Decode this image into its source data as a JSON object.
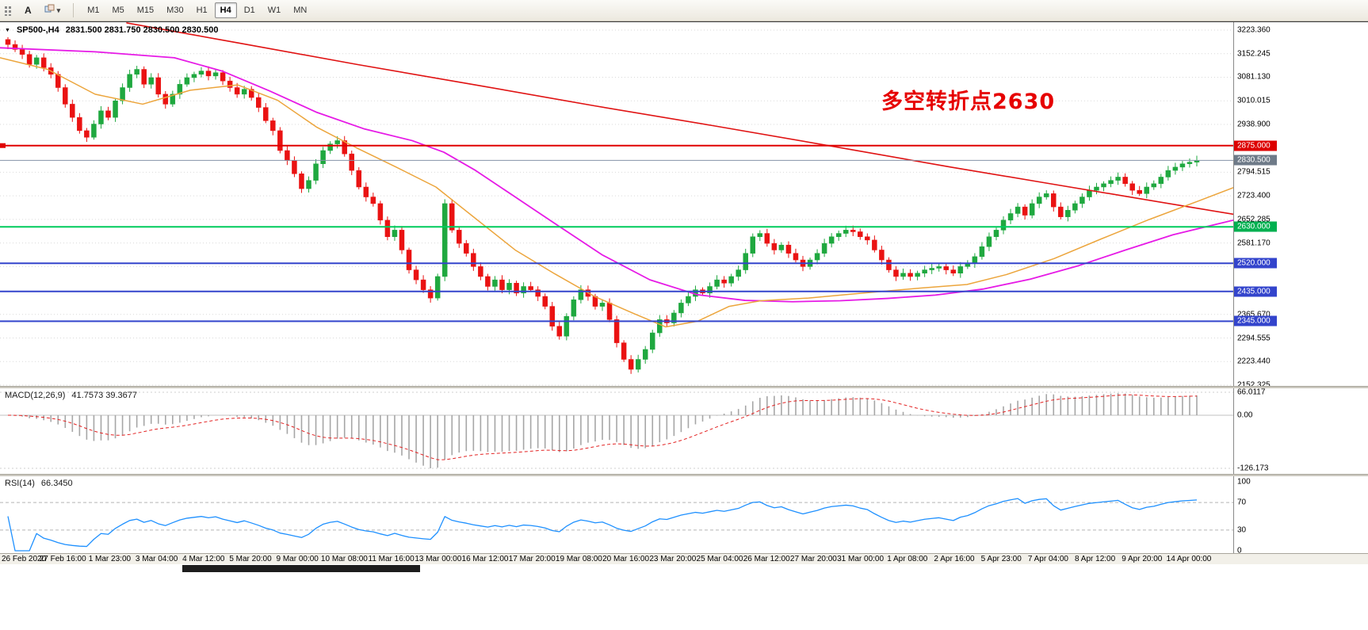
{
  "toolbar": {
    "a_button": "A",
    "timeframes": [
      "M1",
      "M5",
      "M15",
      "M30",
      "H1",
      "H4",
      "D1",
      "W1",
      "MN"
    ],
    "active_timeframe": "H4"
  },
  "header": {
    "symbol": "SP500-,H4",
    "ohlc": "2831.500 2831.750 2830.500 2830.500"
  },
  "annotation": {
    "text": "多空转折点2630",
    "color": "#e60000"
  },
  "macd_panel": {
    "label_name": "MACD(12,26,9)",
    "label_values": "41.7573 39.3677"
  },
  "rsi_panel": {
    "label_name": "RSI(14)",
    "label_value": "66.3450"
  },
  "chart_data": {
    "type": "candlestick",
    "symbol": "SP500-",
    "timeframe": "H4",
    "current_ohlc": {
      "open": 2831.5,
      "high": 2831.75,
      "low": 2830.5,
      "close": 2830.5
    },
    "y_axis": {
      "range": [
        2152.325,
        3223.36
      ],
      "tick_labels": [
        {
          "text": "3223.360",
          "price": 3223.36
        },
        {
          "text": "3152.245",
          "price": 3152.245
        },
        {
          "text": "3081.130",
          "price": 3081.13
        },
        {
          "text": "3010.015",
          "price": 3010.015
        },
        {
          "text": "2938.900",
          "price": 2938.9
        },
        {
          "text": "2794.515",
          "price": 2794.515
        },
        {
          "text": "2723.400",
          "price": 2723.4
        },
        {
          "text": "2652.285",
          "price": 2652.285
        },
        {
          "text": "2581.170",
          "price": 2581.17
        },
        {
          "text": "2510.055",
          "price": 2510.055
        },
        {
          "text": "2365.670",
          "price": 2365.67
        },
        {
          "text": "2294.555",
          "price": 2294.555
        },
        {
          "text": "2223.440",
          "price": 2223.44
        },
        {
          "text": "2152.325",
          "price": 2152.325
        }
      ],
      "badges": [
        {
          "text": "2875.000",
          "price": 2875.0,
          "bg": "#dd0000"
        },
        {
          "text": "2830.500",
          "price": 2830.5,
          "bg": "#6e7a88"
        },
        {
          "text": "2630.000",
          "price": 2630.0,
          "bg": "#00b050"
        },
        {
          "text": "2520.000",
          "price": 2520.0,
          "bg": "#3344cc"
        },
        {
          "text": "2435.000",
          "price": 2435.0,
          "bg": "#3344cc"
        },
        {
          "text": "2345.000",
          "price": 2345.0,
          "bg": "#3344cc"
        }
      ]
    },
    "x_axis": {
      "tick_labels": [
        "26 Feb 2020",
        "27 Feb 16:00",
        "1 Mar 23:00",
        "3 Mar 04:00",
        "4 Mar 12:00",
        "5 Mar 20:00",
        "9 Mar 00:00",
        "10 Mar 08:00",
        "11 Mar 16:00",
        "13 Mar 00:00",
        "16 Mar 12:00",
        "17 Mar 20:00",
        "19 Mar 08:00",
        "20 Mar 16:00",
        "23 Mar 20:00",
        "25 Mar 04:00",
        "26 Mar 12:00",
        "27 Mar 20:00",
        "31 Mar 00:00",
        "1 Apr 08:00",
        "2 Apr 16:00",
        "5 Apr 23:00",
        "7 Apr 04:00",
        "8 Apr 12:00",
        "9 Apr 20:00",
        "14 Apr 00:00"
      ]
    },
    "closes": [
      3180,
      3165,
      3150,
      3120,
      3140,
      3110,
      3090,
      3050,
      3000,
      2960,
      2920,
      2900,
      2940,
      2980,
      2960,
      3010,
      3050,
      3090,
      3105,
      3060,
      3080,
      3030,
      3000,
      3030,
      3060,
      3080,
      3090,
      3100,
      3085,
      3095,
      3070,
      3050,
      3030,
      3045,
      3020,
      2990,
      2950,
      2920,
      2860,
      2830,
      2790,
      2745,
      2770,
      2820,
      2860,
      2880,
      2890,
      2850,
      2800,
      2750,
      2720,
      2700,
      2650,
      2600,
      2620,
      2560,
      2500,
      2470,
      2440,
      2415,
      2480,
      2700,
      2620,
      2580,
      2550,
      2510,
      2480,
      2450,
      2470,
      2440,
      2460,
      2430,
      2450,
      2440,
      2420,
      2390,
      2330,
      2300,
      2360,
      2410,
      2440,
      2420,
      2390,
      2400,
      2350,
      2280,
      2230,
      2200,
      2230,
      2260,
      2310,
      2350,
      2340,
      2370,
      2400,
      2420,
      2440,
      2430,
      2450,
      2470,
      2460,
      2480,
      2500,
      2550,
      2600,
      2610,
      2580,
      2560,
      2575,
      2550,
      2530,
      2510,
      2530,
      2550,
      2580,
      2600,
      2610,
      2620,
      2615,
      2600,
      2590,
      2560,
      2530,
      2500,
      2480,
      2490,
      2480,
      2490,
      2500,
      2505,
      2510,
      2500,
      2490,
      2510,
      2520,
      2540,
      2570,
      2600,
      2620,
      2650,
      2670,
      2690,
      2665,
      2700,
      2720,
      2730,
      2690,
      2660,
      2680,
      2700,
      2720,
      2740,
      2750,
      2760,
      2770,
      2780,
      2760,
      2740,
      2730,
      2750,
      2760,
      2780,
      2800,
      2810,
      2820,
      2825,
      2830.5
    ],
    "hlines": [
      {
        "price": 2875.0,
        "color": "#e00000",
        "width": 2
      },
      {
        "price": 2830.5,
        "color": "#8493a8",
        "width": 1
      },
      {
        "price": 2630.0,
        "color": "#00cc5c",
        "width": 2
      },
      {
        "price": 2520.0,
        "color": "#3344cc",
        "width": 2
      },
      {
        "price": 2435.0,
        "color": "#3344cc",
        "width": 2
      },
      {
        "price": 2345.0,
        "color": "#3344cc",
        "width": 2
      }
    ],
    "ma_red": [
      [
        160,
        3245
      ],
      [
        300,
        3185
      ],
      [
        450,
        3120
      ],
      [
        600,
        3058
      ],
      [
        750,
        2995
      ],
      [
        900,
        2935
      ],
      [
        1050,
        2873
      ],
      [
        1200,
        2810
      ],
      [
        1320,
        2762
      ],
      [
        1420,
        2722
      ],
      [
        1500,
        2690
      ],
      [
        1556,
        2668
      ]
    ],
    "ma_magenta": [
      [
        0,
        3170
      ],
      [
        120,
        3158
      ],
      [
        220,
        3140
      ],
      [
        280,
        3100
      ],
      [
        340,
        3040
      ],
      [
        400,
        2975
      ],
      [
        460,
        2925
      ],
      [
        520,
        2890
      ],
      [
        560,
        2855
      ],
      [
        600,
        2800
      ],
      [
        650,
        2720
      ],
      [
        700,
        2640
      ],
      [
        760,
        2545
      ],
      [
        820,
        2470
      ],
      [
        880,
        2425
      ],
      [
        940,
        2408
      ],
      [
        1000,
        2404
      ],
      [
        1060,
        2407
      ],
      [
        1120,
        2414
      ],
      [
        1180,
        2424
      ],
      [
        1240,
        2442
      ],
      [
        1300,
        2472
      ],
      [
        1360,
        2512
      ],
      [
        1420,
        2560
      ],
      [
        1480,
        2606
      ],
      [
        1556,
        2650
      ]
    ],
    "ma_orange": [
      [
        0,
        3140
      ],
      [
        60,
        3105
      ],
      [
        120,
        3030
      ],
      [
        180,
        3000
      ],
      [
        240,
        3042
      ],
      [
        300,
        3058
      ],
      [
        350,
        3012
      ],
      [
        400,
        2930
      ],
      [
        450,
        2868
      ],
      [
        500,
        2810
      ],
      [
        550,
        2750
      ],
      [
        600,
        2655
      ],
      [
        650,
        2560
      ],
      [
        700,
        2488
      ],
      [
        750,
        2420
      ],
      [
        800,
        2368
      ],
      [
        840,
        2328
      ],
      [
        880,
        2345
      ],
      [
        920,
        2390
      ],
      [
        960,
        2407
      ],
      [
        1020,
        2415
      ],
      [
        1080,
        2428
      ],
      [
        1160,
        2445
      ],
      [
        1220,
        2456
      ],
      [
        1270,
        2486
      ],
      [
        1330,
        2534
      ],
      [
        1390,
        2594
      ],
      [
        1450,
        2652
      ],
      [
        1510,
        2706
      ],
      [
        1556,
        2748
      ]
    ],
    "colors": {
      "bull": "#1fa83f",
      "bear": "#ea1212",
      "ma_red": "#e01212",
      "ma_magenta": "#e61ae6",
      "ma_orange": "#eca53c",
      "macd_bar": "#a6a6a6",
      "macd_signal": "#e32222",
      "rsi": "#1e90ff"
    },
    "macd": {
      "params": [
        12,
        26,
        9
      ],
      "current": [
        41.7573,
        39.3677
      ],
      "axis_labels": [
        "66.0117",
        "0.00",
        "-126.173"
      ],
      "scale_max": 66.0117,
      "scale_min": -126.173
    },
    "rsi": {
      "period": 14,
      "current": 66.345,
      "levels": [
        70,
        30
      ],
      "axis_labels": [
        "100",
        "70",
        "30",
        "0"
      ]
    }
  }
}
